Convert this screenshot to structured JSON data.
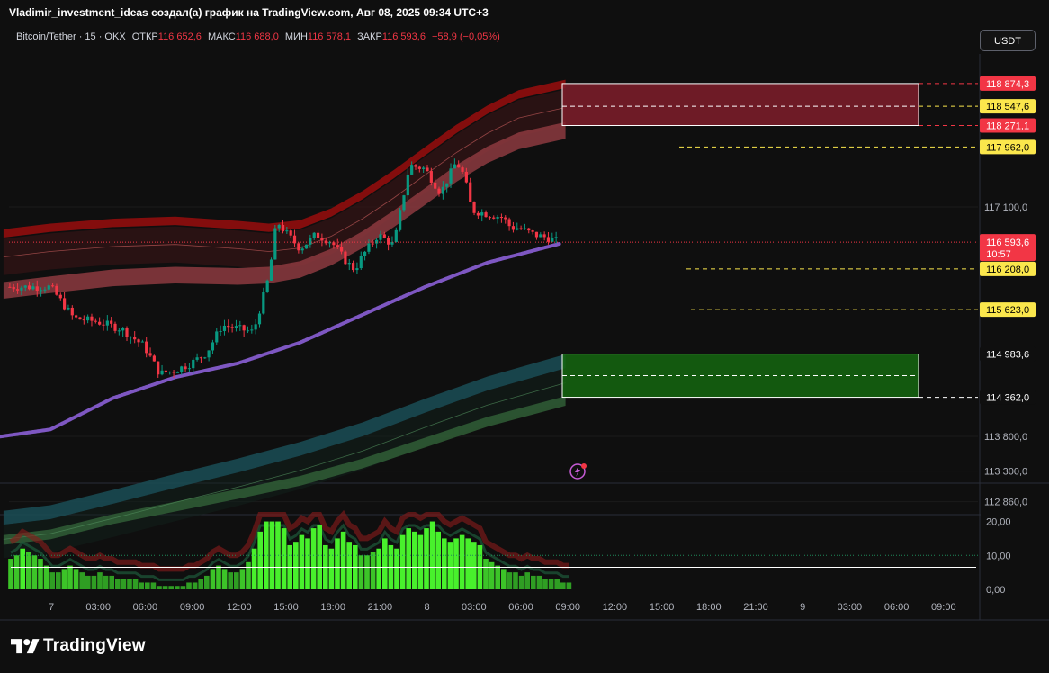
{
  "header": {
    "attribution": "Vladimir_investment_ideas создал(а) график на TradingView.com, Авг 08, 2025 09:34 UTC+3",
    "symbol": "Bitcoin/Tether · 15 · OKX",
    "open_label": "ОТКР",
    "open_value": "116 652,6",
    "high_label": "МАКС",
    "high_value": "116 688,0",
    "low_label": "МИН",
    "low_value": "116 578,1",
    "close_label": "ЗАКР",
    "close_value": "116 593,6",
    "change": "−58,9 (−0,05%)",
    "currency_button": "USDT"
  },
  "footer": {
    "brand": "TradingView"
  },
  "colors": {
    "background": "#0f0f0f",
    "candle_up": "#089981",
    "candle_down": "#f23645",
    "ma_line": "#7e57c2",
    "resistance_zone": "#7f1d2a",
    "support_zone": "#14660f",
    "yellow_level": "#fbe74c",
    "last_price": "#f23645",
    "volume_bright": "#48f02c",
    "volume_dim": "#2f9e23"
  },
  "chart_data": [
    {
      "type": "candlestick",
      "title": "Bitcoin/Tether · 15 · OKX",
      "y_axis_ticks": [
        "117 100,0",
        "113 800,0",
        "113 300,0",
        "112 860,0"
      ],
      "x_axis_ticks": [
        "7",
        "03:00",
        "06:00",
        "09:00",
        "12:00",
        "15:00",
        "18:00",
        "21:00",
        "8",
        "03:00",
        "06:00",
        "09:00",
        "12:00",
        "15:00",
        "18:00",
        "21:00",
        "9",
        "03:00",
        "06:00",
        "09:00"
      ],
      "ylim": [
        112860,
        119400
      ],
      "last_price": {
        "label": "116 593,6",
        "countdown": "10:57",
        "value": 116593.6
      },
      "price_levels": [
        {
          "label": "118 874,3",
          "value": 118874.3,
          "style": "red"
        },
        {
          "label": "118 547,6",
          "value": 118547.6,
          "style": "yellow"
        },
        {
          "label": "118 271,1",
          "value": 118271.1,
          "style": "red"
        },
        {
          "label": "117 962,0",
          "value": 117962.0,
          "style": "yellow"
        },
        {
          "label": "116 208,0",
          "value": 116208.0,
          "style": "yellow"
        },
        {
          "label": "115 623,0",
          "value": 115623.0,
          "style": "yellow"
        },
        {
          "label": "114 983,6",
          "value": 114983.6,
          "style": "white"
        },
        {
          "label": "114 362,0",
          "value": 114362.0,
          "style": "white"
        }
      ],
      "zones": [
        {
          "kind": "resistance",
          "top": 118874.3,
          "bottom": 118271.1,
          "mid": 118547.6
        },
        {
          "kind": "support",
          "top": 114983.6,
          "bottom": 114362.0,
          "mid": 114672.8
        }
      ],
      "close_path_hours": [
        0,
        1.5,
        3,
        4.5,
        6,
        7,
        8,
        9,
        10,
        11,
        12,
        13,
        14,
        14.5,
        15,
        16,
        17,
        18,
        19,
        19.5,
        20,
        21,
        22,
        23,
        24,
        25,
        26,
        26.5,
        27,
        28,
        29,
        29.5,
        30,
        31,
        32,
        32.6
      ],
      "close_path_values": [
        115950,
        115500,
        115450,
        115350,
        115100,
        114700,
        114750,
        114850,
        115000,
        115400,
        115350,
        115300,
        116100,
        116900,
        116750,
        116500,
        116700,
        116600,
        116300,
        116200,
        116400,
        116700,
        116550,
        117700,
        117650,
        117300,
        117750,
        117550,
        117050,
        117000,
        116950,
        116800,
        116800,
        116700,
        116650,
        116593.6
      ],
      "ma_path_hours": [
        0,
        4,
        8,
        12,
        16,
        20,
        24,
        28,
        32.6
      ],
      "ma_path_values": [
        113900,
        114350,
        114650,
        114850,
        115150,
        115550,
        115950,
        116300,
        116570
      ]
    },
    {
      "type": "bar",
      "title": "oscillator",
      "y_axis_ticks": [
        "20,00",
        "10,00",
        "0,00"
      ],
      "ylim": [
        0,
        22
      ],
      "reference_line": 6.5,
      "dotted_line": 10,
      "values": [
        9,
        10,
        12,
        11,
        10,
        9,
        7,
        5,
        5,
        6,
        7,
        6,
        5,
        4,
        4,
        5,
        4,
        4,
        3,
        3,
        3,
        3,
        2,
        2,
        2,
        1,
        1,
        1,
        1,
        1,
        2,
        2,
        3,
        4,
        6,
        7,
        6,
        5,
        5,
        6,
        8,
        12,
        17,
        20,
        20,
        20,
        18,
        13,
        14,
        16,
        15,
        18,
        19,
        13,
        12,
        15,
        17,
        14,
        13,
        10,
        10,
        11,
        12,
        15,
        13,
        12,
        16,
        18,
        17,
        16,
        18,
        20,
        17,
        15,
        14,
        15,
        16,
        15,
        14,
        13,
        9,
        8,
        7,
        6,
        5,
        5,
        4,
        5,
        4,
        4,
        3,
        3,
        3,
        2,
        2
      ]
    }
  ]
}
